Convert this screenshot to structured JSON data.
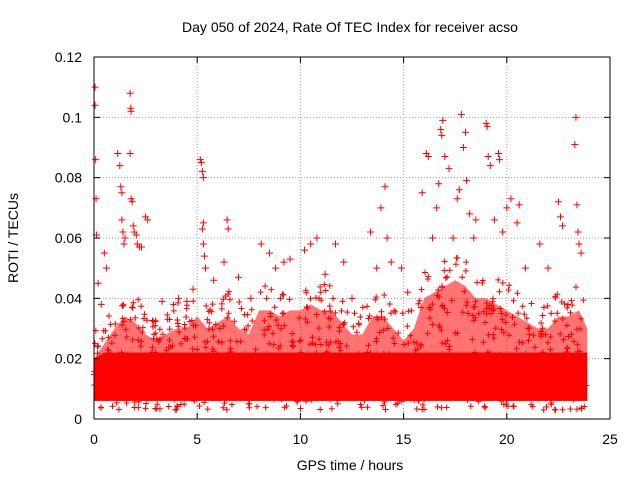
{
  "chart_data": {
    "type": "scatter",
    "title": "Day 050 of 2024, Rate Of TEC Index for receiver acso",
    "xlabel": "GPS time / hours",
    "ylabel": "ROTI / TECUs",
    "xlim": [
      0,
      25
    ],
    "ylim": [
      0,
      0.12
    ],
    "xticks": [
      0,
      5,
      10,
      15,
      20,
      25
    ],
    "yticks": [
      0,
      0.02,
      0.04,
      0.06,
      0.08,
      0.1,
      0.12
    ],
    "grid": true,
    "marker": "plus",
    "series": [
      {
        "name": "ROTI",
        "color": "#ff0000",
        "points": [
          [
            0.05,
            0.11
          ],
          [
            0.05,
            0.104
          ],
          [
            0.08,
            0.086
          ],
          [
            0.1,
            0.073
          ],
          [
            0.12,
            0.061
          ],
          [
            0.2,
            0.045
          ],
          [
            0.35,
            0.038
          ],
          [
            0.5,
            0.055
          ],
          [
            0.6,
            0.05
          ],
          [
            1.15,
            0.088
          ],
          [
            1.25,
            0.084
          ],
          [
            1.3,
            0.077
          ],
          [
            1.35,
            0.075
          ],
          [
            1.35,
            0.066
          ],
          [
            1.4,
            0.062
          ],
          [
            1.45,
            0.058
          ],
          [
            1.5,
            0.06
          ],
          [
            1.75,
            0.108
          ],
          [
            1.78,
            0.103
          ],
          [
            1.8,
            0.102
          ],
          [
            1.75,
            0.088
          ],
          [
            1.8,
            0.073
          ],
          [
            1.85,
            0.072
          ],
          [
            1.9,
            0.064
          ],
          [
            1.95,
            0.062
          ],
          [
            2.05,
            0.061
          ],
          [
            2.1,
            0.058
          ],
          [
            2.2,
            0.057
          ],
          [
            2.3,
            0.057
          ],
          [
            2.5,
            0.067
          ],
          [
            2.6,
            0.066
          ],
          [
            3.3,
            0.039
          ],
          [
            4.1,
            0.04
          ],
          [
            4.5,
            0.039
          ],
          [
            4.8,
            0.043
          ],
          [
            5.15,
            0.086
          ],
          [
            5.2,
            0.085
          ],
          [
            5.25,
            0.082
          ],
          [
            5.3,
            0.08
          ],
          [
            5.3,
            0.065
          ],
          [
            5.25,
            0.063
          ],
          [
            5.3,
            0.058
          ],
          [
            5.35,
            0.054
          ],
          [
            5.4,
            0.05
          ],
          [
            5.8,
            0.046
          ],
          [
            6.3,
            0.052
          ],
          [
            6.45,
            0.066
          ],
          [
            6.5,
            0.063
          ],
          [
            7.0,
            0.047
          ],
          [
            7.6,
            0.04
          ],
          [
            8.1,
            0.058
          ],
          [
            8.5,
            0.055
          ],
          [
            8.8,
            0.05
          ],
          [
            9.2,
            0.052
          ],
          [
            9.5,
            0.053
          ],
          [
            10.2,
            0.056
          ],
          [
            10.5,
            0.058
          ],
          [
            10.8,
            0.06
          ],
          [
            11.2,
            0.048
          ],
          [
            11.7,
            0.058
          ],
          [
            12.1,
            0.052
          ],
          [
            12.5,
            0.04
          ],
          [
            13.4,
            0.062
          ],
          [
            13.7,
            0.05
          ],
          [
            13.9,
            0.07
          ],
          [
            14.1,
            0.077
          ],
          [
            14.2,
            0.06
          ],
          [
            14.4,
            0.052
          ],
          [
            14.9,
            0.05
          ],
          [
            15.2,
            0.042
          ],
          [
            15.9,
            0.075
          ],
          [
            16.1,
            0.088
          ],
          [
            16.2,
            0.087
          ],
          [
            16.4,
            0.06
          ],
          [
            16.6,
            0.07
          ],
          [
            16.7,
            0.078
          ],
          [
            16.8,
            0.096
          ],
          [
            16.85,
            0.094
          ],
          [
            16.9,
            0.099
          ],
          [
            17.0,
            0.087
          ],
          [
            17.2,
            0.083
          ],
          [
            17.4,
            0.06
          ],
          [
            17.6,
            0.073
          ],
          [
            17.7,
            0.076
          ],
          [
            17.8,
            0.101
          ],
          [
            17.9,
            0.09
          ],
          [
            18.0,
            0.095
          ],
          [
            18.05,
            0.079
          ],
          [
            18.2,
            0.068
          ],
          [
            18.4,
            0.06
          ],
          [
            18.5,
            0.066
          ],
          [
            19.0,
            0.098
          ],
          [
            19.05,
            0.097
          ],
          [
            19.1,
            0.087
          ],
          [
            19.2,
            0.084
          ],
          [
            19.4,
            0.066
          ],
          [
            19.6,
            0.088
          ],
          [
            19.65,
            0.086
          ],
          [
            19.8,
            0.062
          ],
          [
            20.0,
            0.07
          ],
          [
            20.2,
            0.073
          ],
          [
            20.5,
            0.065
          ],
          [
            20.6,
            0.071
          ],
          [
            20.9,
            0.05
          ],
          [
            21.6,
            0.058
          ],
          [
            22.0,
            0.05
          ],
          [
            22.5,
            0.072
          ],
          [
            22.6,
            0.067
          ],
          [
            22.7,
            0.064
          ],
          [
            23.3,
            0.091
          ],
          [
            23.35,
            0.1
          ],
          [
            23.4,
            0.071
          ],
          [
            23.45,
            0.062
          ],
          [
            23.5,
            0.058
          ],
          [
            23.6,
            0.055
          ]
        ]
      }
    ]
  }
}
